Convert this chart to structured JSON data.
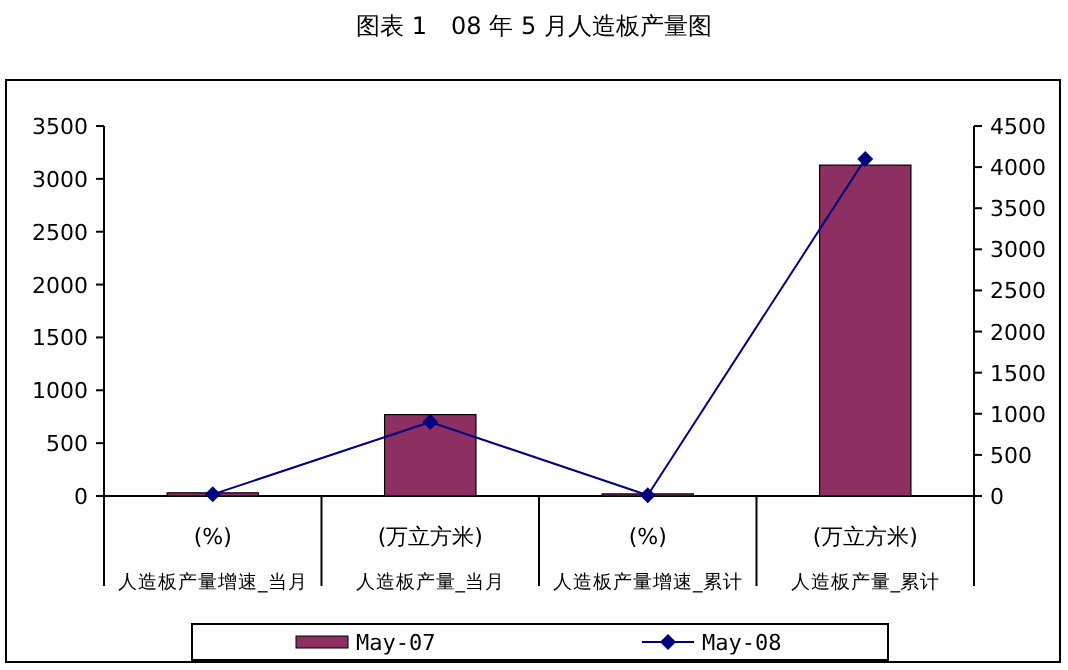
{
  "chart_data": {
    "type": "bar",
    "title": "图表 1　08 年 5 月人造板产量图",
    "categories": [
      "(%) 人造板产量增速_当月",
      "(万立方米) 人造板产量_当月",
      "(%) 人造板产量增速_累计",
      "(万立方米) 人造板产量_累计"
    ],
    "series": [
      {
        "name": "May-07",
        "color": "#8e2f61",
        "values": [
          30,
          770,
          20,
          3130
        ]
      },
      {
        "name": "May-08",
        "type": "line",
        "axis": "y2",
        "color": "#000080",
        "marker": "diamond",
        "values": [
          20,
          900,
          10,
          4100
        ]
      }
    ],
    "ylim": [
      0,
      3500
    ],
    "yticks": [
      0,
      500,
      1000,
      1500,
      2000,
      2500,
      3000,
      3500
    ],
    "y2lim": [
      0,
      4500
    ],
    "y2ticks": [
      0,
      500,
      1000,
      1500,
      2000,
      2500,
      3000,
      3500,
      4000,
      4500
    ],
    "legend": "bottom",
    "grid": false
  }
}
